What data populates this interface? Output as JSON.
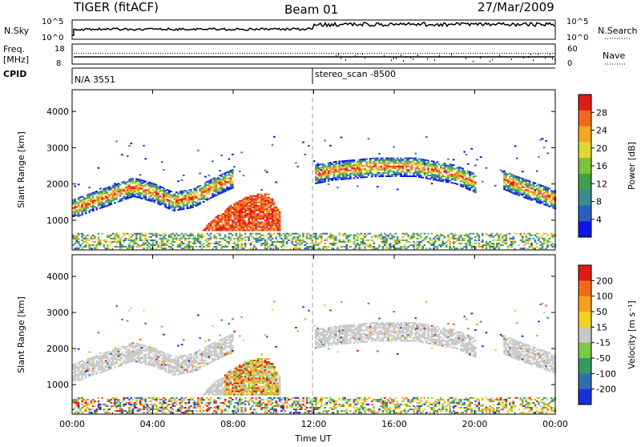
{
  "header": {
    "title": "TIGER (fitACF)",
    "beam": "Beam 01",
    "date": "27/Mar/2009"
  },
  "top_panel": {
    "left_label": "N.Sky",
    "right_label": "N.Search",
    "left_ticks": [
      "10^5",
      "10^0"
    ],
    "right_ticks": [
      "10^5",
      "10^0"
    ]
  },
  "freq_panel": {
    "left_label_line1": "Freq.",
    "left_label_line2": "[MHz]",
    "left_ticks": [
      "18",
      "8"
    ],
    "right_label": "Nave",
    "right_ticks": [
      "60",
      "0"
    ]
  },
  "cpid": {
    "label": "CPID",
    "segment1": "N/A 3551",
    "segment2": "stereo_scan -8500"
  },
  "chart_data": [
    {
      "type": "heatmap",
      "title": "",
      "ylabel": "Slant Range [km]",
      "xlabel": "",
      "ylim": [
        180,
        4600
      ],
      "yticks": [
        "1000",
        "2000",
        "3000",
        "4000"
      ],
      "ytick_values": [
        1000,
        2000,
        3000,
        4000
      ],
      "colorbar": {
        "label": "Power [dB]",
        "ticks": [
          "4",
          "8",
          "12",
          "16",
          "20",
          "24",
          "28"
        ],
        "colors": [
          "#0a17e6",
          "#2a5fc0",
          "#3a8a8f",
          "#3f9f4d",
          "#7cc23a",
          "#e3d631",
          "#f5a623",
          "#f06a1c",
          "#e01a12"
        ]
      },
      "bands": [
        {
          "name": "",
          "t": [
            0,
            1,
            2,
            3,
            4,
            5,
            6,
            7,
            8
          ],
          "range": [
            1300,
            1500,
            1700,
            1900,
            1750,
            1500,
            1600,
            1900,
            2150
          ]
        },
        {
          "name": "",
          "t": [
            12,
            13,
            15,
            17,
            19,
            20
          ],
          "range": [
            2250,
            2350,
            2450,
            2450,
            2250,
            2000
          ]
        },
        {
          "name": "",
          "t": [
            21.4,
            22,
            23,
            24
          ],
          "range": [
            2100,
            1950,
            1750,
            1550
          ]
        }
      ],
      "patch": {
        "t": [
          6.4,
          10.3
        ],
        "range": [
          700,
          1700
        ],
        "peak_db": 30
      }
    },
    {
      "type": "heatmap",
      "title": "",
      "ylabel": "Slant Range [km]",
      "xlabel": "Time UT",
      "ylim": [
        180,
        4600
      ],
      "yticks": [
        "1000",
        "2000",
        "3000",
        "4000"
      ],
      "ytick_values": [
        1000,
        2000,
        3000,
        4000
      ],
      "xticks": [
        "00:00",
        "04:00",
        "08:00",
        "12:00",
        "16:00",
        "20:00",
        "00:00"
      ],
      "xtick_values": [
        0,
        4,
        8,
        12,
        16,
        20,
        24
      ],
      "colorbar": {
        "label": "Velocity [m s⁻¹]",
        "ticks": [
          "200",
          "100",
          "50",
          "15",
          "-15",
          "-50",
          "-100",
          "-200"
        ],
        "colors": [
          "#1a2fd6",
          "#2f6fb0",
          "#339a62",
          "#7ac943",
          "#c8c8c8",
          "#f2d21f",
          "#f5a11d",
          "#f06a1c",
          "#e01a12"
        ]
      }
    }
  ]
}
